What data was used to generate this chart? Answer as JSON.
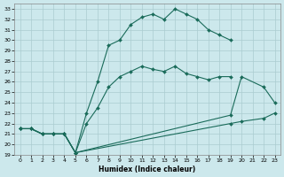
{
  "xlabel": "Humidex (Indice chaleur)",
  "xlim": [
    -0.5,
    23.5
  ],
  "ylim": [
    19,
    33.5
  ],
  "xticks": [
    0,
    1,
    2,
    3,
    4,
    5,
    6,
    7,
    8,
    9,
    10,
    11,
    12,
    13,
    14,
    15,
    16,
    17,
    18,
    19,
    20,
    21,
    22,
    23
  ],
  "yticks": [
    19,
    20,
    21,
    22,
    23,
    24,
    25,
    26,
    27,
    28,
    29,
    30,
    31,
    32,
    33
  ],
  "bg_color": "#cce8ec",
  "grid_color": "#aaccd0",
  "line_color": "#1a6b5a",
  "line1_x": [
    0,
    1,
    2,
    3,
    4,
    5,
    6,
    7,
    8,
    9,
    10,
    11,
    12,
    13,
    14,
    15,
    16,
    17,
    18,
    19
  ],
  "line1_y": [
    21.5,
    21.5,
    21.0,
    21.0,
    21.0,
    19.2,
    23.0,
    26.0,
    29.5,
    30.0,
    31.5,
    32.2,
    32.5,
    32.0,
    33.0,
    32.5,
    32.0,
    31.0,
    30.5,
    30.0
  ],
  "line2_x": [
    0,
    1,
    2,
    3,
    4,
    5,
    6,
    7,
    8,
    9,
    10,
    11,
    12,
    13,
    14,
    15,
    16,
    17,
    18,
    19
  ],
  "line2_y": [
    21.5,
    21.5,
    21.0,
    21.0,
    21.0,
    19.2,
    22.0,
    23.5,
    25.5,
    26.5,
    27.0,
    27.5,
    27.2,
    27.0,
    27.5,
    26.8,
    26.5,
    26.2,
    26.5,
    26.5
  ],
  "line3_x": [
    0,
    1,
    2,
    3,
    4,
    5,
    19,
    20,
    22,
    23
  ],
  "line3_y": [
    21.5,
    21.5,
    21.0,
    21.0,
    21.0,
    19.2,
    22.8,
    26.5,
    25.5,
    24.0
  ],
  "line4_x": [
    0,
    1,
    2,
    3,
    4,
    5,
    19,
    20,
    22,
    23
  ],
  "line4_y": [
    21.5,
    21.5,
    21.0,
    21.0,
    21.0,
    19.2,
    22.0,
    22.2,
    22.5,
    23.0
  ]
}
